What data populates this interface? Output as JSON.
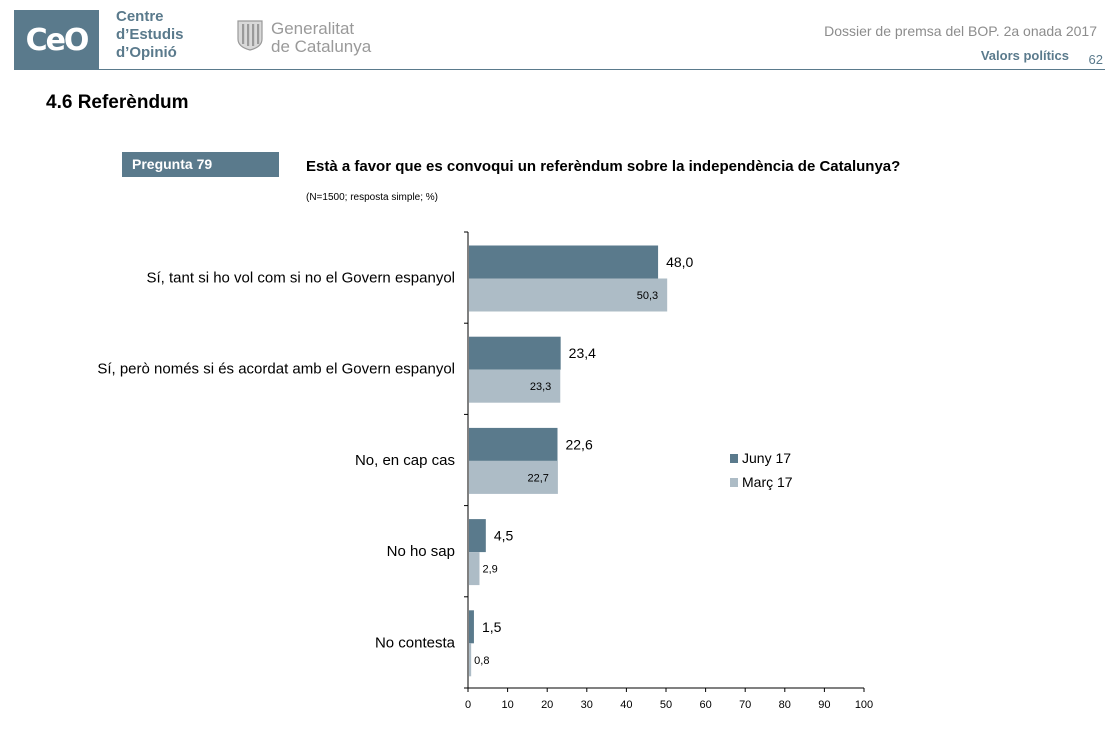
{
  "header": {
    "logo_text": "CeO",
    "org_lines": [
      "Centre",
      "d’Estudis",
      "d’Opinió"
    ],
    "gov_lines": [
      "Generalitat",
      "de Catalunya"
    ],
    "doc_title": "Dossier de premsa del BOP. 2a onada 2017",
    "section_tag": "Valors polítics",
    "page_number": "62"
  },
  "section_heading": "4.6 Referèndum",
  "question": {
    "badge": "Pregunta 79",
    "text": "Està a favor que es convoqui un referèndum sobre la independència de Catalunya?",
    "note": "(N=1500; resposta simple; %)"
  },
  "colors": {
    "brand": "#5a7a8c",
    "series_june": "#5a7a8c",
    "series_march": "#adbcc6"
  },
  "chart_data": {
    "type": "bar",
    "orientation": "horizontal",
    "categories": [
      "Sí, tant si ho vol com si no el Govern espanyol",
      "Sí, però només si és acordat amb el Govern espanyol",
      "No, en cap cas",
      "No ho sap",
      "No contesta"
    ],
    "series": [
      {
        "name": "Juny 17",
        "values": [
          48.0,
          23.4,
          22.6,
          4.5,
          1.5
        ],
        "labels": [
          "48,0",
          "23,4",
          "22,6",
          "4,5",
          "1,5"
        ]
      },
      {
        "name": "Març 17",
        "values": [
          50.3,
          23.3,
          22.7,
          2.9,
          0.8
        ],
        "labels": [
          "50,3",
          "23,3",
          "22,7",
          "2,9",
          "0,8"
        ]
      }
    ],
    "xlim": [
      0,
      100
    ],
    "xticks": [
      "0",
      "10",
      "20",
      "30",
      "40",
      "50",
      "60",
      "70",
      "80",
      "90",
      "100"
    ],
    "legend_position": "right",
    "grid": false
  }
}
